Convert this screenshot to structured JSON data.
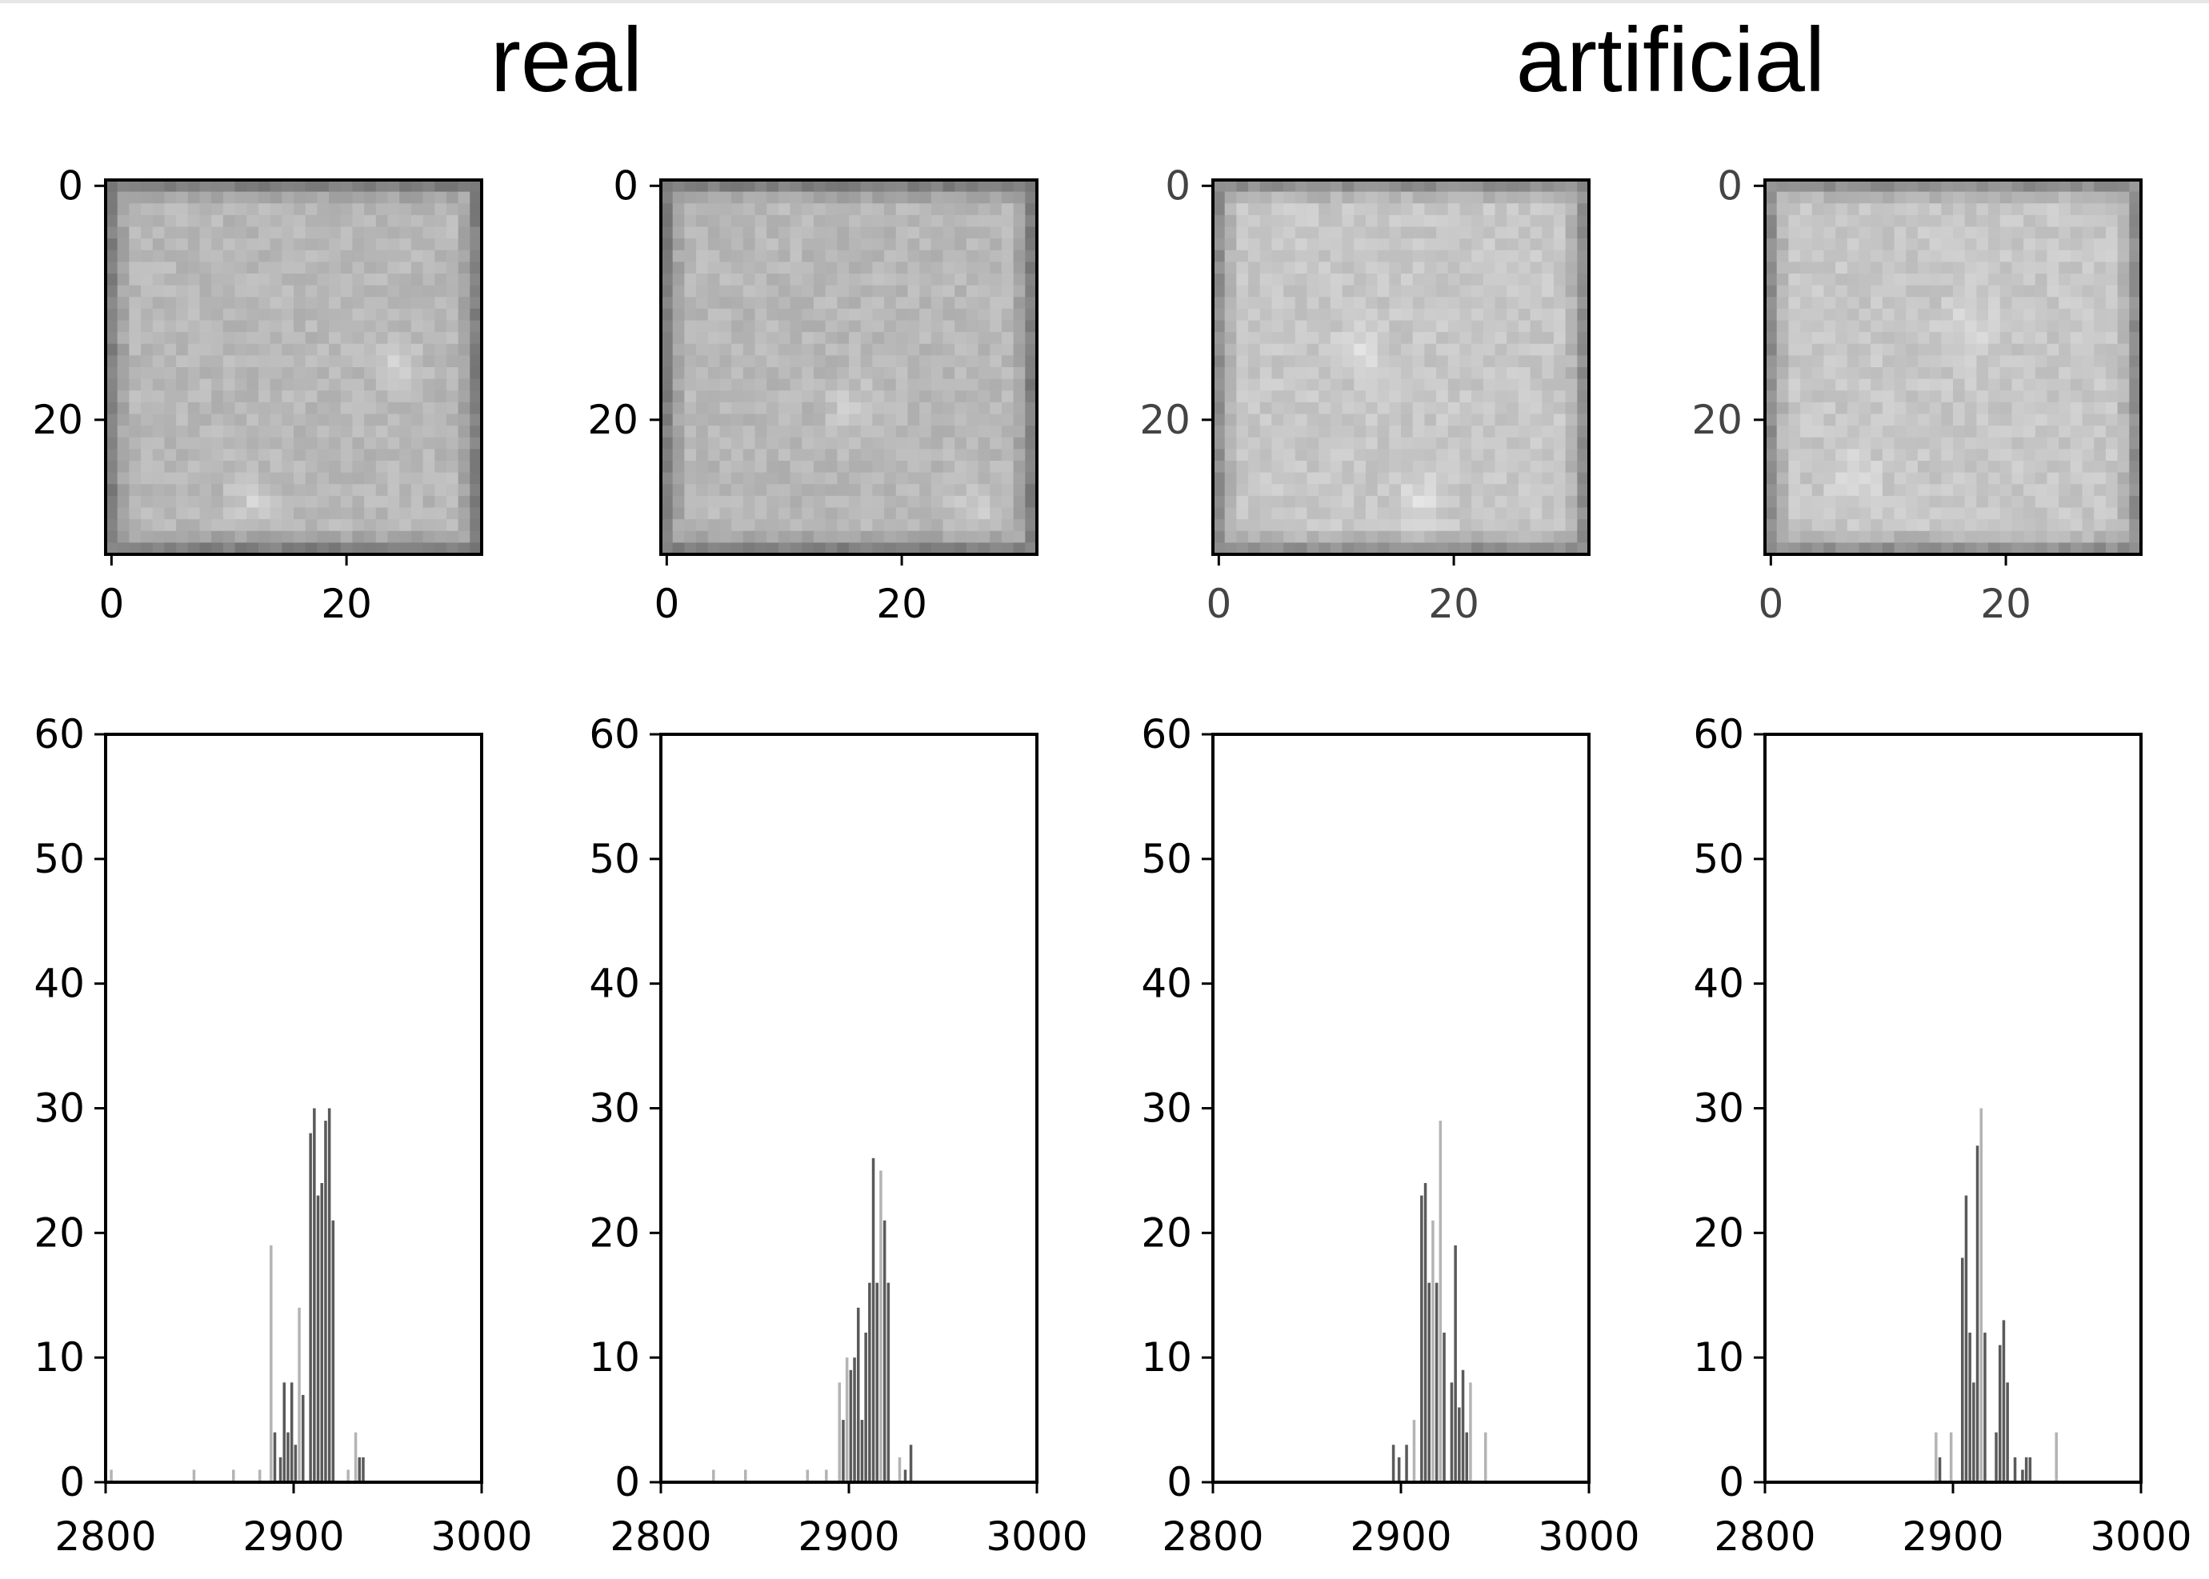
{
  "group_titles": [
    "real",
    "artificial"
  ],
  "colors": {
    "axis": "#000000",
    "bar_dark": "#5a5a5a",
    "bar_light": "#b4b4b4",
    "image_gray": "#b8b8b8"
  },
  "chart_data": [
    {
      "type": "heatmap",
      "group": "real",
      "x_ticks": [
        "0",
        "20"
      ],
      "y_ticks": [
        "0",
        "20"
      ],
      "xlim": [
        0,
        31
      ],
      "ylim": [
        31,
        0
      ],
      "colormap": "gray",
      "mean_intensity": 0.72,
      "bright_spots": [
        {
          "x": 12,
          "y": 27
        },
        {
          "x": 24,
          "y": 15
        }
      ]
    },
    {
      "type": "heatmap",
      "group": "real",
      "x_ticks": [
        "0",
        "20"
      ],
      "y_ticks": [
        "0",
        "20"
      ],
      "xlim": [
        0,
        31
      ],
      "ylim": [
        31,
        0
      ],
      "colormap": "gray",
      "mean_intensity": 0.72,
      "bright_spots": [
        {
          "x": 16,
          "y": 19
        },
        {
          "x": 26,
          "y": 28
        }
      ]
    },
    {
      "type": "heatmap",
      "group": "artificial",
      "x_ticks": [
        "0",
        "20"
      ],
      "y_ticks": [
        "0",
        "20"
      ],
      "xlim": [
        0,
        31
      ],
      "ylim": [
        31,
        0
      ],
      "colormap": "gray",
      "mean_intensity": 0.78,
      "bright_spots": [
        {
          "x": 12,
          "y": 14
        },
        {
          "x": 17,
          "y": 27
        }
      ]
    },
    {
      "type": "heatmap",
      "group": "artificial",
      "x_ticks": [
        "0",
        "20"
      ],
      "y_ticks": [
        "0",
        "20"
      ],
      "xlim": [
        0,
        31
      ],
      "ylim": [
        31,
        0
      ],
      "colormap": "gray",
      "mean_intensity": 0.78,
      "bright_spots": [
        {
          "x": 17,
          "y": 12
        },
        {
          "x": 7,
          "y": 25
        }
      ]
    },
    {
      "type": "bar",
      "group": "real",
      "xlim": [
        2800,
        3000
      ],
      "ylim": [
        0,
        60
      ],
      "x_ticks": [
        "2800",
        "2900",
        "3000"
      ],
      "y_ticks": [
        "0",
        "10",
        "20",
        "30",
        "40",
        "50",
        "60"
      ],
      "bins": [
        {
          "x": 2803,
          "y": 1,
          "shade": "light"
        },
        {
          "x": 2847,
          "y": 1,
          "shade": "light"
        },
        {
          "x": 2868,
          "y": 1,
          "shade": "light"
        },
        {
          "x": 2882,
          "y": 1,
          "shade": "light"
        },
        {
          "x": 2888,
          "y": 19,
          "shade": "light"
        },
        {
          "x": 2890,
          "y": 4,
          "shade": "dark"
        },
        {
          "x": 2893,
          "y": 2,
          "shade": "dark"
        },
        {
          "x": 2895,
          "y": 8,
          "shade": "dark"
        },
        {
          "x": 2897,
          "y": 4,
          "shade": "dark"
        },
        {
          "x": 2899,
          "y": 8,
          "shade": "dark"
        },
        {
          "x": 2901,
          "y": 3,
          "shade": "dark"
        },
        {
          "x": 2903,
          "y": 14,
          "shade": "light"
        },
        {
          "x": 2905,
          "y": 7,
          "shade": "dark"
        },
        {
          "x": 2909,
          "y": 28,
          "shade": "dark"
        },
        {
          "x": 2911,
          "y": 30,
          "shade": "dark"
        },
        {
          "x": 2913,
          "y": 23,
          "shade": "dark"
        },
        {
          "x": 2915,
          "y": 24,
          "shade": "dark"
        },
        {
          "x": 2917,
          "y": 29,
          "shade": "dark"
        },
        {
          "x": 2919,
          "y": 30,
          "shade": "dark"
        },
        {
          "x": 2921,
          "y": 21,
          "shade": "dark"
        },
        {
          "x": 2929,
          "y": 1,
          "shade": "light"
        },
        {
          "x": 2933,
          "y": 4,
          "shade": "light"
        },
        {
          "x": 2935,
          "y": 2,
          "shade": "dark"
        },
        {
          "x": 2937,
          "y": 2,
          "shade": "dark"
        }
      ]
    },
    {
      "type": "bar",
      "group": "real",
      "xlim": [
        2800,
        3000
      ],
      "ylim": [
        0,
        60
      ],
      "x_ticks": [
        "2800",
        "2900",
        "3000"
      ],
      "y_ticks": [
        "0",
        "10",
        "20",
        "30",
        "40",
        "50",
        "60"
      ],
      "bins": [
        {
          "x": 2828,
          "y": 1,
          "shade": "light"
        },
        {
          "x": 2845,
          "y": 1,
          "shade": "light"
        },
        {
          "x": 2878,
          "y": 1,
          "shade": "light"
        },
        {
          "x": 2888,
          "y": 1,
          "shade": "light"
        },
        {
          "x": 2895,
          "y": 8,
          "shade": "light"
        },
        {
          "x": 2897,
          "y": 5,
          "shade": "dark"
        },
        {
          "x": 2899,
          "y": 10,
          "shade": "light"
        },
        {
          "x": 2901,
          "y": 9,
          "shade": "dark"
        },
        {
          "x": 2903,
          "y": 10,
          "shade": "dark"
        },
        {
          "x": 2905,
          "y": 14,
          "shade": "dark"
        },
        {
          "x": 2907,
          "y": 5,
          "shade": "dark"
        },
        {
          "x": 2909,
          "y": 12,
          "shade": "dark"
        },
        {
          "x": 2911,
          "y": 16,
          "shade": "dark"
        },
        {
          "x": 2913,
          "y": 26,
          "shade": "dark"
        },
        {
          "x": 2915,
          "y": 16,
          "shade": "dark"
        },
        {
          "x": 2917,
          "y": 25,
          "shade": "light"
        },
        {
          "x": 2919,
          "y": 21,
          "shade": "dark"
        },
        {
          "x": 2921,
          "y": 16,
          "shade": "dark"
        },
        {
          "x": 2927,
          "y": 2,
          "shade": "light"
        },
        {
          "x": 2930,
          "y": 1,
          "shade": "dark"
        },
        {
          "x": 2933,
          "y": 3,
          "shade": "dark"
        }
      ]
    },
    {
      "type": "bar",
      "group": "artificial",
      "xlim": [
        2800,
        3000
      ],
      "ylim": [
        0,
        60
      ],
      "x_ticks": [
        "2800",
        "2900",
        "3000"
      ],
      "y_ticks": [
        "0",
        "10",
        "20",
        "30",
        "40",
        "50",
        "60"
      ],
      "bins": [
        {
          "x": 2896,
          "y": 3,
          "shade": "dark"
        },
        {
          "x": 2899,
          "y": 2,
          "shade": "dark"
        },
        {
          "x": 2903,
          "y": 3,
          "shade": "dark"
        },
        {
          "x": 2907,
          "y": 5,
          "shade": "light"
        },
        {
          "x": 2911,
          "y": 23,
          "shade": "dark"
        },
        {
          "x": 2913,
          "y": 24,
          "shade": "dark"
        },
        {
          "x": 2915,
          "y": 16,
          "shade": "dark"
        },
        {
          "x": 2917,
          "y": 21,
          "shade": "light"
        },
        {
          "x": 2919,
          "y": 16,
          "shade": "dark"
        },
        {
          "x": 2921,
          "y": 29,
          "shade": "light"
        },
        {
          "x": 2923,
          "y": 12,
          "shade": "dark"
        },
        {
          "x": 2927,
          "y": 8,
          "shade": "dark"
        },
        {
          "x": 2929,
          "y": 19,
          "shade": "dark"
        },
        {
          "x": 2931,
          "y": 6,
          "shade": "dark"
        },
        {
          "x": 2933,
          "y": 9,
          "shade": "dark"
        },
        {
          "x": 2935,
          "y": 4,
          "shade": "dark"
        },
        {
          "x": 2937,
          "y": 8,
          "shade": "light"
        },
        {
          "x": 2945,
          "y": 4,
          "shade": "light"
        }
      ]
    },
    {
      "type": "bar",
      "group": "artificial",
      "xlim": [
        2800,
        3000
      ],
      "ylim": [
        0,
        60
      ],
      "x_ticks": [
        "2800",
        "2900",
        "3000"
      ],
      "y_ticks": [
        "0",
        "10",
        "20",
        "30",
        "40",
        "50",
        "60"
      ],
      "bins": [
        {
          "x": 2891,
          "y": 4,
          "shade": "light"
        },
        {
          "x": 2893,
          "y": 2,
          "shade": "dark"
        },
        {
          "x": 2899,
          "y": 4,
          "shade": "light"
        },
        {
          "x": 2905,
          "y": 18,
          "shade": "dark"
        },
        {
          "x": 2907,
          "y": 23,
          "shade": "dark"
        },
        {
          "x": 2909,
          "y": 12,
          "shade": "dark"
        },
        {
          "x": 2911,
          "y": 8,
          "shade": "dark"
        },
        {
          "x": 2913,
          "y": 27,
          "shade": "dark"
        },
        {
          "x": 2915,
          "y": 30,
          "shade": "light"
        },
        {
          "x": 2917,
          "y": 12,
          "shade": "dark"
        },
        {
          "x": 2923,
          "y": 4,
          "shade": "dark"
        },
        {
          "x": 2925,
          "y": 11,
          "shade": "dark"
        },
        {
          "x": 2927,
          "y": 13,
          "shade": "dark"
        },
        {
          "x": 2929,
          "y": 8,
          "shade": "dark"
        },
        {
          "x": 2933,
          "y": 2,
          "shade": "dark"
        },
        {
          "x": 2937,
          "y": 1,
          "shade": "dark"
        },
        {
          "x": 2939,
          "y": 2,
          "shade": "dark"
        },
        {
          "x": 2941,
          "y": 2,
          "shade": "dark"
        },
        {
          "x": 2955,
          "y": 4,
          "shade": "light"
        }
      ]
    }
  ]
}
